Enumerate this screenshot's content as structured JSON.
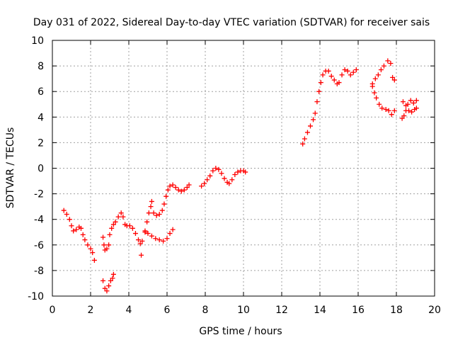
{
  "chart_data": {
    "type": "scatter",
    "title": "Day 031 of 2022, Sidereal Day-to-day VTEC variation (SDTVAR) for receiver sais",
    "xlabel": "GPS time / hours",
    "ylabel": "SDTVAR / TECUs",
    "xlim": [
      0,
      20
    ],
    "ylim": [
      -10,
      10
    ],
    "xticks": [
      "0",
      "2",
      "4",
      "6",
      "8",
      "10",
      "12",
      "14",
      "16",
      "18",
      "20"
    ],
    "yticks": [
      "-10",
      "-8",
      "-6",
      "-4",
      "-2",
      "0",
      "2",
      "4",
      "6",
      "8",
      "10"
    ],
    "grid": true,
    "marker": "plus",
    "color": "#ff0000",
    "series": [
      {
        "points": [
          [
            0.6,
            -3.3
          ],
          [
            0.75,
            -3.6
          ],
          [
            0.9,
            -4.0
          ],
          [
            1.0,
            -4.5
          ],
          [
            1.1,
            -4.9
          ],
          [
            1.25,
            -4.8
          ],
          [
            1.4,
            -4.6
          ],
          [
            1.5,
            -4.7
          ],
          [
            1.6,
            -5.2
          ],
          [
            1.7,
            -5.6
          ],
          [
            1.85,
            -6.0
          ],
          [
            2.0,
            -6.3
          ],
          [
            2.1,
            -6.6
          ],
          [
            2.2,
            -7.2
          ],
          [
            2.65,
            -5.4
          ],
          [
            2.7,
            -6.0
          ],
          [
            2.75,
            -6.4
          ],
          [
            2.85,
            -6.3
          ],
          [
            2.95,
            -6.0
          ],
          [
            3.0,
            -5.2
          ],
          [
            3.1,
            -4.7
          ],
          [
            3.2,
            -4.4
          ],
          [
            3.3,
            -4.2
          ],
          [
            3.45,
            -3.8
          ],
          [
            3.6,
            -3.5
          ],
          [
            3.7,
            -3.8
          ],
          [
            3.8,
            -4.4
          ],
          [
            3.9,
            -4.5
          ],
          [
            4.05,
            -4.5
          ],
          [
            4.2,
            -4.7
          ],
          [
            4.35,
            -5.1
          ],
          [
            4.5,
            -5.6
          ],
          [
            4.6,
            -5.9
          ],
          [
            4.65,
            -6.8
          ],
          [
            4.7,
            -5.7
          ],
          [
            4.85,
            -5.0
          ],
          [
            4.95,
            -4.2
          ],
          [
            5.05,
            -3.5
          ],
          [
            5.15,
            -3.0
          ],
          [
            5.2,
            -2.6
          ],
          [
            2.65,
            -8.8
          ],
          [
            2.75,
            -9.4
          ],
          [
            2.85,
            -9.6
          ],
          [
            2.95,
            -9.2
          ],
          [
            3.05,
            -8.8
          ],
          [
            3.15,
            -8.6
          ],
          [
            3.2,
            -8.3
          ],
          [
            4.85,
            -4.9
          ],
          [
            5.0,
            -5.1
          ],
          [
            5.2,
            -5.3
          ],
          [
            5.4,
            -5.5
          ],
          [
            5.6,
            -5.6
          ],
          [
            5.8,
            -5.7
          ],
          [
            6.0,
            -5.5
          ],
          [
            6.15,
            -5.1
          ],
          [
            6.3,
            -4.8
          ],
          [
            5.3,
            -3.5
          ],
          [
            5.45,
            -3.7
          ],
          [
            5.6,
            -3.6
          ],
          [
            5.75,
            -3.3
          ],
          [
            5.85,
            -2.8
          ],
          [
            5.95,
            -2.2
          ],
          [
            6.05,
            -1.7
          ],
          [
            6.15,
            -1.4
          ],
          [
            6.3,
            -1.3
          ],
          [
            6.45,
            -1.5
          ],
          [
            6.6,
            -1.7
          ],
          [
            6.75,
            -1.8
          ],
          [
            6.9,
            -1.7
          ],
          [
            7.05,
            -1.5
          ],
          [
            7.15,
            -1.3
          ],
          [
            7.8,
            -1.4
          ],
          [
            7.95,
            -1.2
          ],
          [
            8.1,
            -0.9
          ],
          [
            8.25,
            -0.6
          ],
          [
            8.4,
            -0.2
          ],
          [
            8.55,
            0.0
          ],
          [
            8.7,
            -0.1
          ],
          [
            8.85,
            -0.4
          ],
          [
            9.0,
            -0.8
          ],
          [
            9.15,
            -1.1
          ],
          [
            9.25,
            -1.2
          ],
          [
            9.4,
            -0.9
          ],
          [
            9.55,
            -0.5
          ],
          [
            9.7,
            -0.3
          ],
          [
            9.85,
            -0.2
          ],
          [
            10.0,
            -0.2
          ],
          [
            10.1,
            -0.3
          ],
          [
            13.1,
            1.9
          ],
          [
            13.2,
            2.3
          ],
          [
            13.35,
            2.8
          ],
          [
            13.5,
            3.3
          ],
          [
            13.65,
            3.8
          ],
          [
            13.75,
            4.3
          ],
          [
            13.85,
            5.2
          ],
          [
            13.95,
            6.0
          ],
          [
            14.05,
            6.7
          ],
          [
            14.15,
            7.3
          ],
          [
            14.3,
            7.6
          ],
          [
            14.45,
            7.6
          ],
          [
            14.6,
            7.2
          ],
          [
            14.75,
            6.9
          ],
          [
            14.9,
            6.6
          ],
          [
            15.0,
            6.7
          ],
          [
            15.15,
            7.3
          ],
          [
            15.3,
            7.7
          ],
          [
            15.45,
            7.6
          ],
          [
            15.6,
            7.3
          ],
          [
            15.75,
            7.5
          ],
          [
            15.9,
            7.7
          ],
          [
            16.75,
            6.6
          ],
          [
            16.9,
            7.0
          ],
          [
            17.05,
            7.3
          ],
          [
            17.2,
            7.7
          ],
          [
            17.35,
            8.0
          ],
          [
            17.55,
            8.4
          ],
          [
            17.7,
            8.2
          ],
          [
            17.8,
            7.1
          ],
          [
            17.9,
            6.9
          ],
          [
            16.75,
            6.4
          ],
          [
            16.85,
            5.9
          ],
          [
            16.95,
            5.5
          ],
          [
            17.1,
            5.0
          ],
          [
            17.25,
            4.7
          ],
          [
            17.45,
            4.6
          ],
          [
            17.6,
            4.5
          ],
          [
            17.75,
            4.2
          ],
          [
            17.9,
            4.5
          ],
          [
            18.3,
            3.9
          ],
          [
            18.4,
            4.1
          ],
          [
            18.5,
            4.5
          ],
          [
            18.6,
            5.0
          ],
          [
            18.75,
            5.3
          ],
          [
            18.9,
            5.1
          ],
          [
            19.05,
            5.3
          ],
          [
            18.35,
            5.2
          ],
          [
            18.5,
            4.9
          ],
          [
            18.65,
            4.5
          ],
          [
            18.8,
            4.4
          ],
          [
            18.95,
            4.6
          ],
          [
            19.05,
            4.7
          ]
        ]
      }
    ]
  }
}
